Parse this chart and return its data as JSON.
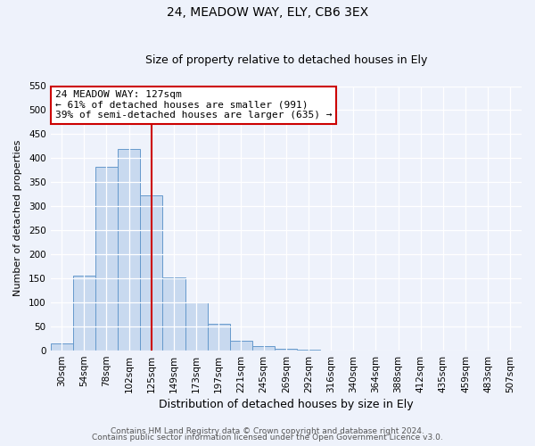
{
  "title": "24, MEADOW WAY, ELY, CB6 3EX",
  "subtitle": "Size of property relative to detached houses in Ely",
  "xlabel": "Distribution of detached houses by size in Ely",
  "ylabel": "Number of detached properties",
  "bar_color": "#c8d9ef",
  "bar_edge_color": "#6699cc",
  "bin_labels": [
    "30sqm",
    "54sqm",
    "78sqm",
    "102sqm",
    "125sqm",
    "149sqm",
    "173sqm",
    "197sqm",
    "221sqm",
    "245sqm",
    "269sqm",
    "292sqm",
    "316sqm",
    "340sqm",
    "364sqm",
    "388sqm",
    "412sqm",
    "435sqm",
    "459sqm",
    "483sqm",
    "507sqm"
  ],
  "bin_values": [
    15,
    155,
    383,
    420,
    323,
    153,
    100,
    55,
    21,
    10,
    4,
    2,
    1,
    1,
    0,
    0,
    1,
    0,
    0,
    0,
    1
  ],
  "vline_x": 4,
  "ylim": [
    0,
    550
  ],
  "yticks": [
    0,
    50,
    100,
    150,
    200,
    250,
    300,
    350,
    400,
    450,
    500,
    550
  ],
  "annotation_title": "24 MEADOW WAY: 127sqm",
  "annotation_line1": "← 61% of detached houses are smaller (991)",
  "annotation_line2": "39% of semi-detached houses are larger (635) →",
  "footer1": "Contains HM Land Registry data © Crown copyright and database right 2024.",
  "footer2": "Contains public sector information licensed under the Open Government Licence v3.0.",
  "background_color": "#eef2fb",
  "grid_color": "#ffffff",
  "annotation_box_color": "#ffffff",
  "annotation_box_edge": "#cc0000",
  "vline_color": "#cc0000",
  "title_fontsize": 10,
  "subtitle_fontsize": 9,
  "xlabel_fontsize": 9,
  "ylabel_fontsize": 8,
  "tick_fontsize": 7.5,
  "footer_fontsize": 6.5,
  "annotation_fontsize": 8
}
